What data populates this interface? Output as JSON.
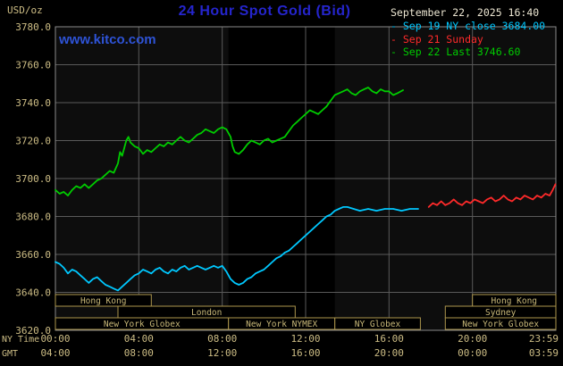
{
  "header": {
    "unit_label": "USD/oz",
    "title": "24 Hour Spot Gold (Bid)",
    "datetime": "September 22, 2025 16:40",
    "watermark": "www.kitco.com",
    "legend": [
      {
        "label": "Sep 19 NY close 3684.00",
        "color": "#00c8ff"
      },
      {
        "label": "Sep 21 Sunday",
        "color": "#ff2a2a"
      },
      {
        "label": "Sep 22 Last 3746.60",
        "color": "#00cc00"
      }
    ]
  },
  "axes": {
    "ny_time_label": "NY Time",
    "gmt_label": "GMT",
    "x_ticks_ny": [
      "00:00",
      "04:00",
      "08:00",
      "12:00",
      "16:00",
      "20:00",
      "23:59"
    ],
    "x_ticks_gmt": [
      "04:00",
      "08:00",
      "12:00",
      "16:00",
      "20:00",
      "00:00",
      "03:59"
    ]
  },
  "sessions": [
    {
      "label": "Hong Kong",
      "row": 0,
      "start": 0,
      "end": 4.6
    },
    {
      "label": "London",
      "row": 1,
      "start": 3.0,
      "end": 11.5
    },
    {
      "label": "New York Globex",
      "row": 2,
      "start": 0,
      "end": 8.3
    },
    {
      "label": "New York NYMEX",
      "row": 2,
      "start": 8.3,
      "end": 13.4
    },
    {
      "label": "NY Globex",
      "row": 2,
      "start": 13.4,
      "end": 17.5
    },
    {
      "label": "Hong Kong",
      "row": 0,
      "start": 20.0,
      "end": 24
    },
    {
      "label": "Sydney",
      "row": 1,
      "start": 18.7,
      "end": 24
    },
    {
      "label": "New York Globex",
      "row": 2,
      "start": 18.7,
      "end": 24
    }
  ],
  "chart_data": {
    "type": "line",
    "title": "24 Hour Spot Gold (Bid)",
    "ylabel": "USD/oz",
    "ylim": [
      3620,
      3780
    ],
    "xlim_hours": [
      0,
      24
    ],
    "y_ticks": [
      3620,
      3640,
      3660,
      3680,
      3700,
      3720,
      3740,
      3760,
      3780
    ],
    "x_tick_hours": [
      0,
      4,
      8,
      12,
      16,
      20,
      23.983
    ],
    "grid": true,
    "legend_position": "top-right",
    "highlight_band": {
      "start": 8.3,
      "end": 13.4,
      "label": "New York NYMEX hours"
    },
    "series": [
      {
        "id": "sep19-ny-close",
        "name": "Sep 19 NY close",
        "close": 3684.0,
        "color": "#00c8ff",
        "points": [
          [
            0,
            3656
          ],
          [
            0.2,
            3655
          ],
          [
            0.4,
            3653
          ],
          [
            0.6,
            3650
          ],
          [
            0.8,
            3652
          ],
          [
            1,
            3651
          ],
          [
            1.2,
            3649
          ],
          [
            1.4,
            3647
          ],
          [
            1.6,
            3645
          ],
          [
            1.8,
            3647
          ],
          [
            2,
            3648
          ],
          [
            2.2,
            3646
          ],
          [
            2.4,
            3644
          ],
          [
            2.6,
            3643
          ],
          [
            2.8,
            3642
          ],
          [
            3,
            3641
          ],
          [
            3.2,
            3643
          ],
          [
            3.4,
            3645
          ],
          [
            3.6,
            3647
          ],
          [
            3.8,
            3649
          ],
          [
            4,
            3650
          ],
          [
            4.2,
            3652
          ],
          [
            4.4,
            3651
          ],
          [
            4.6,
            3650
          ],
          [
            4.8,
            3652
          ],
          [
            5,
            3653
          ],
          [
            5.2,
            3651
          ],
          [
            5.4,
            3650
          ],
          [
            5.6,
            3652
          ],
          [
            5.8,
            3651
          ],
          [
            6,
            3653
          ],
          [
            6.2,
            3654
          ],
          [
            6.4,
            3652
          ],
          [
            6.6,
            3653
          ],
          [
            6.8,
            3654
          ],
          [
            7,
            3653
          ],
          [
            7.2,
            3652
          ],
          [
            7.4,
            3653
          ],
          [
            7.6,
            3654
          ],
          [
            7.8,
            3653
          ],
          [
            8,
            3654
          ],
          [
            8.2,
            3651
          ],
          [
            8.4,
            3647
          ],
          [
            8.6,
            3645
          ],
          [
            8.8,
            3644
          ],
          [
            9,
            3645
          ],
          [
            9.2,
            3647
          ],
          [
            9.4,
            3648
          ],
          [
            9.6,
            3650
          ],
          [
            9.8,
            3651
          ],
          [
            10,
            3652
          ],
          [
            10.2,
            3654
          ],
          [
            10.4,
            3656
          ],
          [
            10.6,
            3658
          ],
          [
            10.8,
            3659
          ],
          [
            11,
            3661
          ],
          [
            11.2,
            3662
          ],
          [
            11.4,
            3664
          ],
          [
            11.6,
            3666
          ],
          [
            11.8,
            3668
          ],
          [
            12,
            3670
          ],
          [
            12.2,
            3672
          ],
          [
            12.4,
            3674
          ],
          [
            12.6,
            3676
          ],
          [
            12.8,
            3678
          ],
          [
            13,
            3680
          ],
          [
            13.2,
            3681
          ],
          [
            13.4,
            3683
          ],
          [
            13.6,
            3684
          ],
          [
            13.8,
            3685
          ],
          [
            14,
            3685
          ],
          [
            14.3,
            3684
          ],
          [
            14.6,
            3683
          ],
          [
            15,
            3684
          ],
          [
            15.4,
            3683
          ],
          [
            15.8,
            3684
          ],
          [
            16.2,
            3684
          ],
          [
            16.6,
            3683
          ],
          [
            17,
            3684
          ],
          [
            17.4,
            3684
          ]
        ]
      },
      {
        "id": "sep21-sunday",
        "name": "Sep 21 Sunday",
        "color": "#ff2a2a",
        "points": [
          [
            17.9,
            3685
          ],
          [
            18.1,
            3687
          ],
          [
            18.3,
            3686
          ],
          [
            18.5,
            3688
          ],
          [
            18.7,
            3686
          ],
          [
            18.9,
            3687
          ],
          [
            19.1,
            3689
          ],
          [
            19.3,
            3687
          ],
          [
            19.5,
            3686
          ],
          [
            19.7,
            3688
          ],
          [
            19.9,
            3687
          ],
          [
            20.1,
            3689
          ],
          [
            20.3,
            3688
          ],
          [
            20.5,
            3687
          ],
          [
            20.7,
            3689
          ],
          [
            20.9,
            3690
          ],
          [
            21.1,
            3688
          ],
          [
            21.3,
            3689
          ],
          [
            21.5,
            3691
          ],
          [
            21.7,
            3689
          ],
          [
            21.9,
            3688
          ],
          [
            22.1,
            3690
          ],
          [
            22.3,
            3689
          ],
          [
            22.5,
            3691
          ],
          [
            22.7,
            3690
          ],
          [
            22.9,
            3689
          ],
          [
            23.1,
            3691
          ],
          [
            23.3,
            3690
          ],
          [
            23.5,
            3692
          ],
          [
            23.7,
            3691
          ],
          [
            23.85,
            3694
          ],
          [
            23.98,
            3697
          ]
        ]
      },
      {
        "id": "sep22-last",
        "name": "Sep 22",
        "last": 3746.6,
        "color": "#00cc00",
        "points": [
          [
            0,
            3694
          ],
          [
            0.2,
            3692
          ],
          [
            0.4,
            3693
          ],
          [
            0.6,
            3691
          ],
          [
            0.8,
            3694
          ],
          [
            1,
            3696
          ],
          [
            1.2,
            3695
          ],
          [
            1.4,
            3697
          ],
          [
            1.6,
            3695
          ],
          [
            1.8,
            3697
          ],
          [
            2,
            3699
          ],
          [
            2.2,
            3700
          ],
          [
            2.4,
            3702
          ],
          [
            2.6,
            3704
          ],
          [
            2.8,
            3703
          ],
          [
            3,
            3708
          ],
          [
            3.1,
            3714
          ],
          [
            3.2,
            3712
          ],
          [
            3.3,
            3716
          ],
          [
            3.4,
            3720
          ],
          [
            3.5,
            3722
          ],
          [
            3.6,
            3719
          ],
          [
            3.8,
            3717
          ],
          [
            4,
            3716
          ],
          [
            4.2,
            3713
          ],
          [
            4.4,
            3715
          ],
          [
            4.6,
            3714
          ],
          [
            4.8,
            3716
          ],
          [
            5,
            3718
          ],
          [
            5.2,
            3717
          ],
          [
            5.4,
            3719
          ],
          [
            5.6,
            3718
          ],
          [
            5.8,
            3720
          ],
          [
            6,
            3722
          ],
          [
            6.2,
            3720
          ],
          [
            6.4,
            3719
          ],
          [
            6.6,
            3721
          ],
          [
            6.8,
            3723
          ],
          [
            7,
            3724
          ],
          [
            7.2,
            3726
          ],
          [
            7.4,
            3725
          ],
          [
            7.6,
            3724
          ],
          [
            7.8,
            3726
          ],
          [
            8,
            3727
          ],
          [
            8.2,
            3726
          ],
          [
            8.4,
            3722
          ],
          [
            8.5,
            3717
          ],
          [
            8.6,
            3714
          ],
          [
            8.8,
            3713
          ],
          [
            9,
            3715
          ],
          [
            9.2,
            3718
          ],
          [
            9.4,
            3720
          ],
          [
            9.6,
            3719
          ],
          [
            9.8,
            3718
          ],
          [
            10,
            3720
          ],
          [
            10.2,
            3721
          ],
          [
            10.4,
            3719
          ],
          [
            10.6,
            3720
          ],
          [
            10.8,
            3721
          ],
          [
            11,
            3722
          ],
          [
            11.2,
            3725
          ],
          [
            11.4,
            3728
          ],
          [
            11.6,
            3730
          ],
          [
            11.8,
            3732
          ],
          [
            12,
            3734
          ],
          [
            12.2,
            3736
          ],
          [
            12.4,
            3735
          ],
          [
            12.6,
            3734
          ],
          [
            12.8,
            3736
          ],
          [
            13,
            3738
          ],
          [
            13.2,
            3741
          ],
          [
            13.4,
            3744
          ],
          [
            13.6,
            3745
          ],
          [
            13.8,
            3746
          ],
          [
            14,
            3747
          ],
          [
            14.2,
            3745
          ],
          [
            14.4,
            3744
          ],
          [
            14.6,
            3746
          ],
          [
            14.8,
            3747
          ],
          [
            15,
            3748
          ],
          [
            15.2,
            3746
          ],
          [
            15.4,
            3745
          ],
          [
            15.6,
            3747
          ],
          [
            15.8,
            3746
          ],
          [
            16,
            3746
          ],
          [
            16.2,
            3744
          ],
          [
            16.4,
            3745
          ],
          [
            16.67,
            3746.6
          ]
        ]
      }
    ]
  }
}
